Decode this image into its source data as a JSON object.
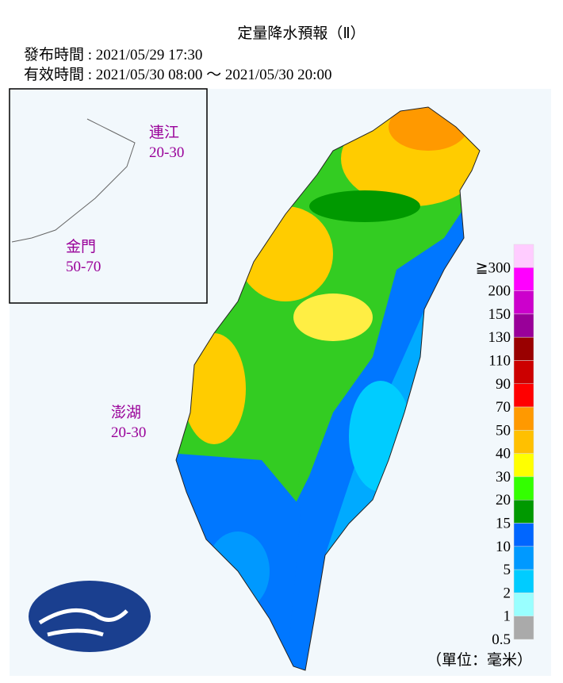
{
  "header": {
    "title": "定量降水預報（Ⅱ）",
    "issued": "發布時間 : 2021/05/29 17:30",
    "valid": "有效時間 : 2021/05/30 08:00 ～ 2021/05/30 20:00"
  },
  "regions": [
    {
      "name": "連江",
      "range": "20-30"
    },
    {
      "name": "金門",
      "range": "50-70"
    },
    {
      "name": "澎湖",
      "range": "20-30"
    }
  ],
  "legend": {
    "unit": "（單位：毫米）",
    "items": [
      {
        "color": "#ffccff",
        "label": "≧300"
      },
      {
        "color": "#ff00ff",
        "label": "200"
      },
      {
        "color": "#cc00cc",
        "label": "150"
      },
      {
        "color": "#990099",
        "label": "130"
      },
      {
        "color": "#990000",
        "label": "110"
      },
      {
        "color": "#cc0000",
        "label": "90"
      },
      {
        "color": "#ff0000",
        "label": "70"
      },
      {
        "color": "#ff9900",
        "label": "50"
      },
      {
        "color": "#ffc000",
        "label": "40"
      },
      {
        "color": "#ffff00",
        "label": "30"
      },
      {
        "color": "#33ff00",
        "label": "20"
      },
      {
        "color": "#009900",
        "label": "15"
      },
      {
        "color": "#0066ff",
        "label": "10"
      },
      {
        "color": "#0099ff",
        "label": "5"
      },
      {
        "color": "#00ccff",
        "label": "2"
      },
      {
        "color": "#99ffff",
        "label": "1"
      },
      {
        "color": "#aaaaaa",
        "label": "0.5"
      }
    ]
  }
}
